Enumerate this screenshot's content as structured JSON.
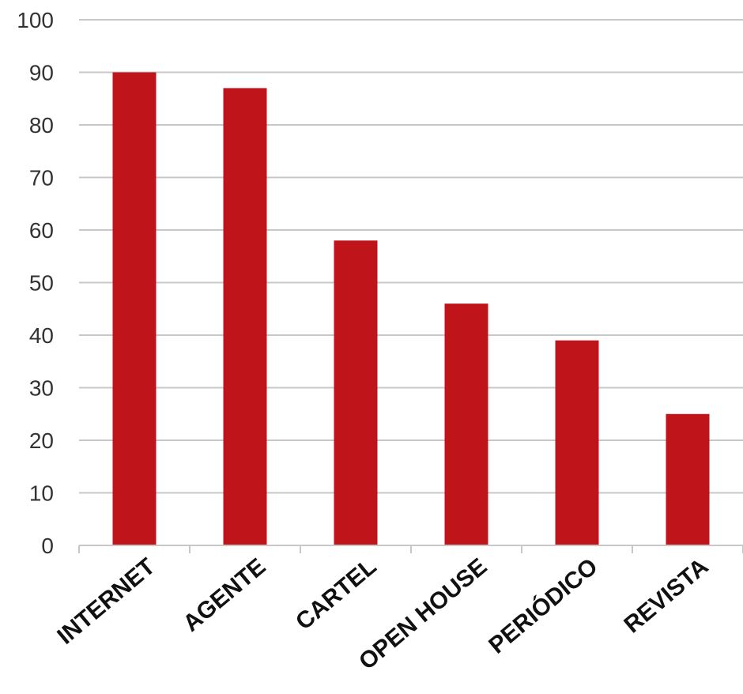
{
  "chart_data": {
    "type": "bar",
    "title": "",
    "xlabel": "",
    "ylabel": "",
    "categories": [
      "INTERNET",
      "AGENTE",
      "CARTEL",
      "OPEN HOUSE",
      "PERIÓDICO",
      "REVISTA"
    ],
    "values": [
      90,
      87,
      58,
      46,
      39,
      25
    ],
    "ylim": [
      0,
      100
    ],
    "yticks": [
      0,
      10,
      20,
      30,
      40,
      50,
      60,
      70,
      80,
      90,
      100
    ],
    "grid": true,
    "legend": "none",
    "bar_color": "#c0141b"
  }
}
